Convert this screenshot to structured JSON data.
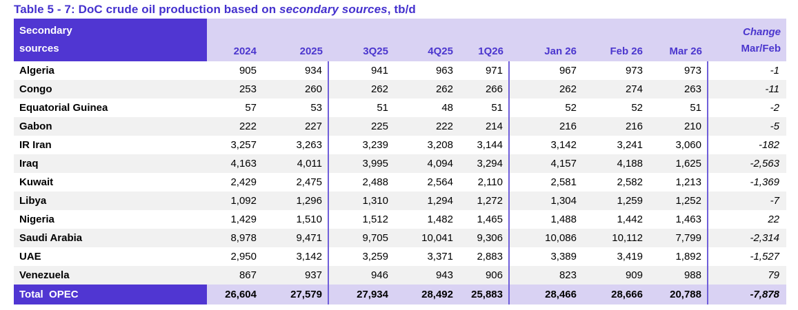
{
  "title": {
    "prefix": "Table 5 - 7: DoC crude oil production based on ",
    "emphasis": "secondary sources",
    "suffix": ", tb/d"
  },
  "colors": {
    "accent_purple": "#5036d2",
    "header_band": "#d9d2f3",
    "header_text": "#4b36ce",
    "title_text": "#4431ce",
    "row_stripe": "#f1f1f1",
    "separator_line": "#6f5ed9"
  },
  "table": {
    "corner": {
      "line1": "Secondary",
      "line2": "sources"
    },
    "change_header_top": "Change",
    "column_keys": [
      "2024",
      "2025",
      "3q25",
      "4q25",
      "1q26",
      "jan26",
      "feb26",
      "mar26"
    ],
    "columns": [
      "2024",
      "2025",
      "3Q25",
      "4Q25",
      "1Q26",
      "Jan 26",
      "Feb 26",
      "Mar 26",
      "Mar/Feb"
    ],
    "rows": [
      {
        "name": "Algeria",
        "values": [
          "905",
          "934",
          "941",
          "963",
          "971",
          "967",
          "973",
          "973"
        ],
        "change": "-1"
      },
      {
        "name": "Congo",
        "values": [
          "253",
          "260",
          "262",
          "262",
          "266",
          "262",
          "274",
          "263"
        ],
        "change": "-11"
      },
      {
        "name": "Equatorial Guinea",
        "values": [
          "57",
          "53",
          "51",
          "48",
          "51",
          "52",
          "52",
          "51"
        ],
        "change": "-2"
      },
      {
        "name": "Gabon",
        "values": [
          "222",
          "227",
          "225",
          "222",
          "214",
          "216",
          "216",
          "210"
        ],
        "change": "-5"
      },
      {
        "name": "IR Iran",
        "values": [
          "3,257",
          "3,263",
          "3,239",
          "3,208",
          "3,144",
          "3,142",
          "3,241",
          "3,060"
        ],
        "change": "-182"
      },
      {
        "name": "Iraq",
        "values": [
          "4,163",
          "4,011",
          "3,995",
          "4,094",
          "3,294",
          "4,157",
          "4,188",
          "1,625"
        ],
        "change": "-2,563"
      },
      {
        "name": "Kuwait",
        "values": [
          "2,429",
          "2,475",
          "2,488",
          "2,564",
          "2,110",
          "2,581",
          "2,582",
          "1,213"
        ],
        "change": "-1,369"
      },
      {
        "name": "Libya",
        "values": [
          "1,092",
          "1,296",
          "1,310",
          "1,294",
          "1,272",
          "1,304",
          "1,259",
          "1,252"
        ],
        "change": "-7"
      },
      {
        "name": "Nigeria",
        "values": [
          "1,429",
          "1,510",
          "1,512",
          "1,482",
          "1,465",
          "1,488",
          "1,442",
          "1,463"
        ],
        "change": "22"
      },
      {
        "name": "Saudi Arabia",
        "values": [
          "8,978",
          "9,471",
          "9,705",
          "10,041",
          "9,306",
          "10,086",
          "10,112",
          "7,799"
        ],
        "change": "-2,314"
      },
      {
        "name": "UAE",
        "values": [
          "2,950",
          "3,142",
          "3,259",
          "3,371",
          "2,883",
          "3,389",
          "3,419",
          "1,892"
        ],
        "change": "-1,527"
      },
      {
        "name": "Venezuela",
        "values": [
          "867",
          "937",
          "946",
          "943",
          "906",
          "823",
          "909",
          "988"
        ],
        "change": "79"
      }
    ],
    "total": {
      "name": "Total  OPEC",
      "values": [
        "26,604",
        "27,579",
        "27,934",
        "28,492",
        "25,883",
        "28,466",
        "28,666",
        "20,788"
      ],
      "change": "-7,878"
    }
  }
}
